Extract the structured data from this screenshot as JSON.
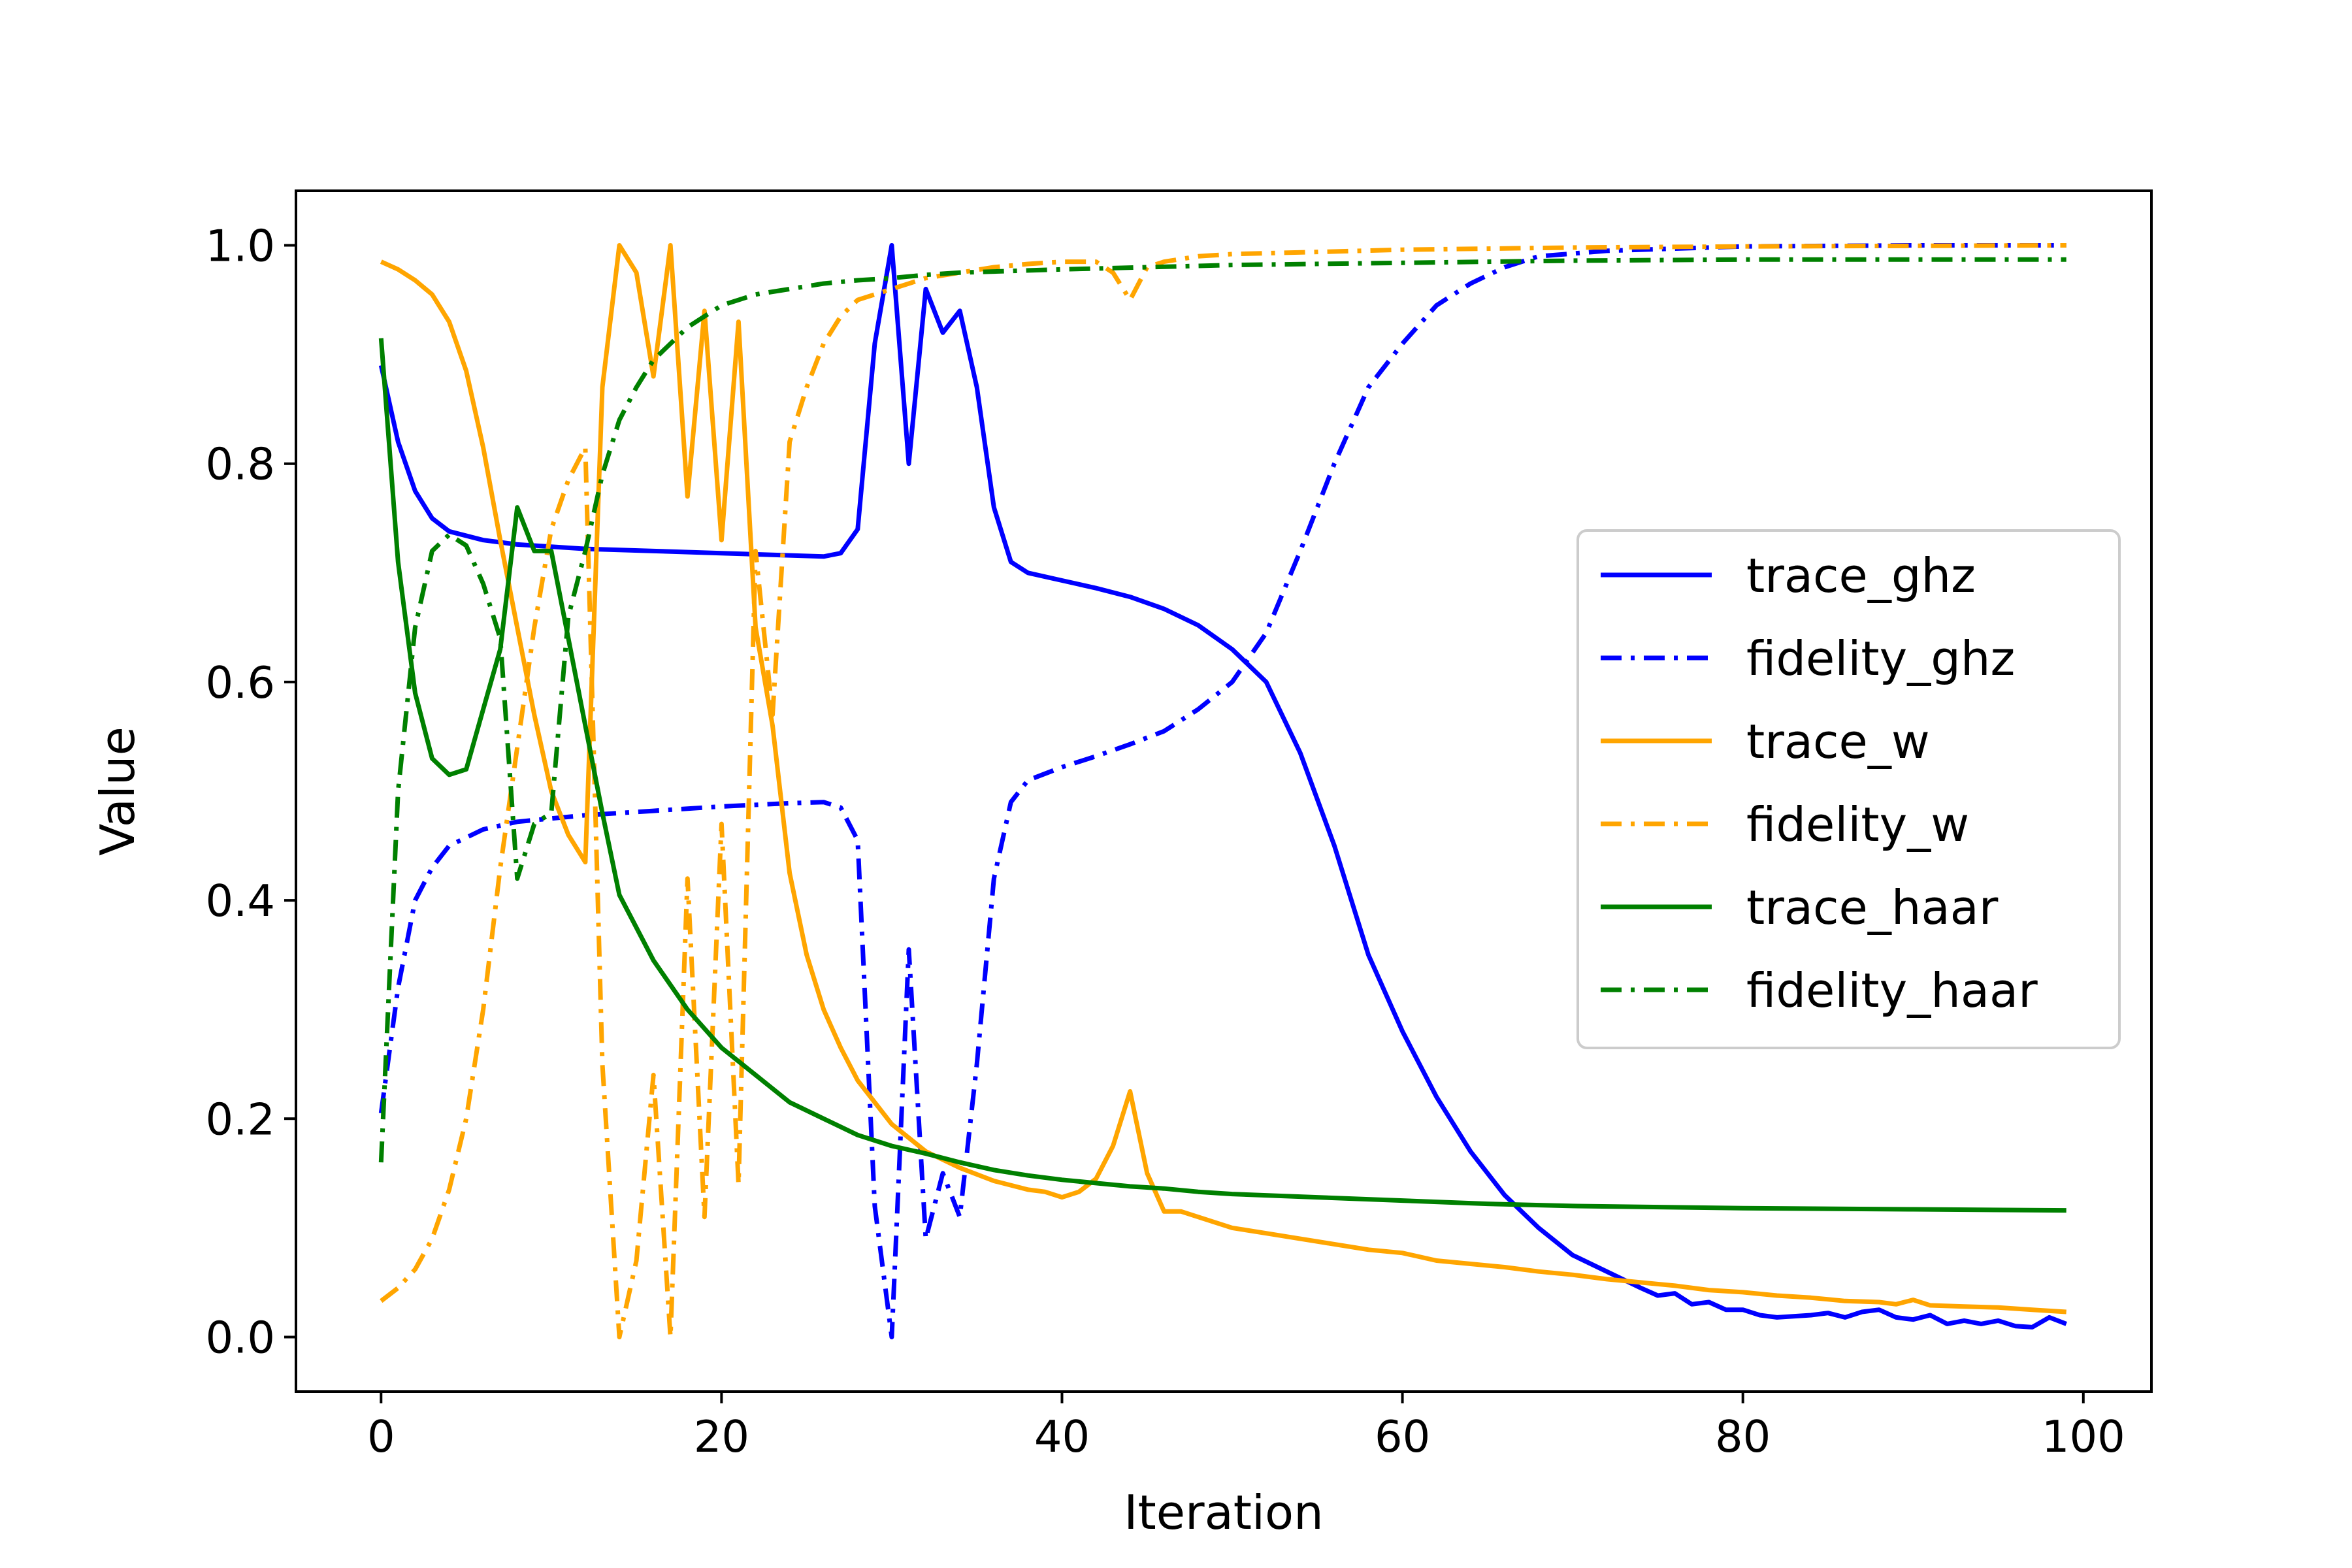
{
  "chart_data": {
    "type": "line",
    "title": "",
    "xlabel": "Iteration",
    "ylabel": "Value",
    "xlim": [
      -5,
      104
    ],
    "ylim": [
      -0.05,
      1.05
    ],
    "xticks": [
      0,
      20,
      40,
      60,
      80,
      100
    ],
    "yticks": [
      0.0,
      0.2,
      0.4,
      0.6,
      0.8,
      1.0
    ],
    "xtick_labels": [
      "0",
      "20",
      "40",
      "60",
      "80",
      "100"
    ],
    "ytick_labels": [
      "0.0",
      "0.2",
      "0.4",
      "0.6",
      "0.8",
      "1.0"
    ],
    "grid": false,
    "legend_position": "center-right",
    "series": [
      {
        "name": "trace_ghz",
        "color": "#0000ff",
        "style": "solid",
        "points": [
          [
            0,
            0.89
          ],
          [
            1,
            0.82
          ],
          [
            2,
            0.775
          ],
          [
            3,
            0.75
          ],
          [
            4,
            0.738
          ],
          [
            6,
            0.73
          ],
          [
            8,
            0.726
          ],
          [
            12,
            0.722
          ],
          [
            16,
            0.72
          ],
          [
            20,
            0.718
          ],
          [
            24,
            0.716
          ],
          [
            26,
            0.715
          ],
          [
            27,
            0.718
          ],
          [
            28,
            0.74
          ],
          [
            29,
            0.91
          ],
          [
            30,
            1.0
          ],
          [
            31,
            0.8
          ],
          [
            32,
            0.96
          ],
          [
            33,
            0.92
          ],
          [
            34,
            0.94
          ],
          [
            35,
            0.87
          ],
          [
            36,
            0.76
          ],
          [
            37,
            0.71
          ],
          [
            38,
            0.7
          ],
          [
            40,
            0.693
          ],
          [
            42,
            0.686
          ],
          [
            44,
            0.678
          ],
          [
            46,
            0.667
          ],
          [
            48,
            0.652
          ],
          [
            50,
            0.63
          ],
          [
            52,
            0.6
          ],
          [
            54,
            0.535
          ],
          [
            56,
            0.45
          ],
          [
            58,
            0.35
          ],
          [
            60,
            0.28
          ],
          [
            62,
            0.22
          ],
          [
            64,
            0.17
          ],
          [
            66,
            0.13
          ],
          [
            68,
            0.1
          ],
          [
            70,
            0.075
          ],
          [
            72,
            0.06
          ],
          [
            74,
            0.045
          ],
          [
            75,
            0.038
          ],
          [
            76,
            0.04
          ],
          [
            77,
            0.03
          ],
          [
            78,
            0.032
          ],
          [
            79,
            0.025
          ],
          [
            80,
            0.025
          ],
          [
            81,
            0.02
          ],
          [
            82,
            0.018
          ],
          [
            84,
            0.02
          ],
          [
            85,
            0.022
          ],
          [
            86,
            0.018
          ],
          [
            87,
            0.023
          ],
          [
            88,
            0.025
          ],
          [
            89,
            0.018
          ],
          [
            90,
            0.016
          ],
          [
            91,
            0.02
          ],
          [
            92,
            0.012
          ],
          [
            93,
            0.015
          ],
          [
            94,
            0.012
          ],
          [
            95,
            0.015
          ],
          [
            96,
            0.01
          ],
          [
            97,
            0.009
          ],
          [
            98,
            0.018
          ],
          [
            99,
            0.012
          ]
        ]
      },
      {
        "name": "fidelity_ghz",
        "color": "#0000ff",
        "style": "dashdot",
        "points": [
          [
            0,
            0.205
          ],
          [
            1,
            0.32
          ],
          [
            2,
            0.4
          ],
          [
            3,
            0.43
          ],
          [
            4,
            0.45
          ],
          [
            6,
            0.465
          ],
          [
            8,
            0.472
          ],
          [
            12,
            0.478
          ],
          [
            16,
            0.482
          ],
          [
            20,
            0.486
          ],
          [
            24,
            0.489
          ],
          [
            26,
            0.49
          ],
          [
            27,
            0.485
          ],
          [
            28,
            0.455
          ],
          [
            29,
            0.12
          ],
          [
            30,
            0.0
          ],
          [
            31,
            0.355
          ],
          [
            32,
            0.09
          ],
          [
            33,
            0.15
          ],
          [
            34,
            0.11
          ],
          [
            35,
            0.25
          ],
          [
            36,
            0.42
          ],
          [
            37,
            0.49
          ],
          [
            38,
            0.51
          ],
          [
            40,
            0.522
          ],
          [
            42,
            0.532
          ],
          [
            44,
            0.543
          ],
          [
            46,
            0.555
          ],
          [
            48,
            0.575
          ],
          [
            50,
            0.6
          ],
          [
            52,
            0.645
          ],
          [
            54,
            0.72
          ],
          [
            56,
            0.8
          ],
          [
            58,
            0.87
          ],
          [
            60,
            0.91
          ],
          [
            62,
            0.945
          ],
          [
            64,
            0.965
          ],
          [
            66,
            0.98
          ],
          [
            68,
            0.99
          ],
          [
            72,
            0.995
          ],
          [
            80,
            0.999
          ],
          [
            90,
            1.0
          ],
          [
            99,
            1.0
          ]
        ]
      },
      {
        "name": "trace_w",
        "color": "#ffa500",
        "style": "solid",
        "points": [
          [
            0,
            0.985
          ],
          [
            1,
            0.978
          ],
          [
            2,
            0.968
          ],
          [
            3,
            0.955
          ],
          [
            4,
            0.93
          ],
          [
            5,
            0.885
          ],
          [
            6,
            0.815
          ],
          [
            7,
            0.73
          ],
          [
            8,
            0.65
          ],
          [
            9,
            0.57
          ],
          [
            10,
            0.5
          ],
          [
            11,
            0.46
          ],
          [
            12,
            0.435
          ],
          [
            13,
            0.87
          ],
          [
            14,
            1.0
          ],
          [
            15,
            0.975
          ],
          [
            16,
            0.88
          ],
          [
            17,
            1.0
          ],
          [
            18,
            0.77
          ],
          [
            19,
            0.94
          ],
          [
            20,
            0.73
          ],
          [
            21,
            0.93
          ],
          [
            22,
            0.65
          ],
          [
            23,
            0.56
          ],
          [
            24,
            0.425
          ],
          [
            25,
            0.35
          ],
          [
            26,
            0.3
          ],
          [
            27,
            0.265
          ],
          [
            28,
            0.235
          ],
          [
            30,
            0.195
          ],
          [
            32,
            0.17
          ],
          [
            34,
            0.155
          ],
          [
            36,
            0.143
          ],
          [
            38,
            0.135
          ],
          [
            39,
            0.133
          ],
          [
            40,
            0.128
          ],
          [
            41,
            0.133
          ],
          [
            42,
            0.145
          ],
          [
            43,
            0.175
          ],
          [
            44,
            0.225
          ],
          [
            45,
            0.15
          ],
          [
            46,
            0.115
          ],
          [
            47,
            0.115
          ],
          [
            48,
            0.11
          ],
          [
            50,
            0.1
          ],
          [
            52,
            0.095
          ],
          [
            54,
            0.09
          ],
          [
            56,
            0.085
          ],
          [
            58,
            0.08
          ],
          [
            60,
            0.077
          ],
          [
            62,
            0.07
          ],
          [
            64,
            0.067
          ],
          [
            66,
            0.064
          ],
          [
            68,
            0.06
          ],
          [
            70,
            0.057
          ],
          [
            72,
            0.053
          ],
          [
            74,
            0.05
          ],
          [
            76,
            0.047
          ],
          [
            78,
            0.043
          ],
          [
            80,
            0.041
          ],
          [
            82,
            0.038
          ],
          [
            84,
            0.036
          ],
          [
            86,
            0.033
          ],
          [
            88,
            0.032
          ],
          [
            89,
            0.03
          ],
          [
            90,
            0.034
          ],
          [
            91,
            0.029
          ],
          [
            93,
            0.028
          ],
          [
            95,
            0.027
          ],
          [
            97,
            0.025
          ],
          [
            99,
            0.023
          ]
        ]
      },
      {
        "name": "fidelity_w",
        "color": "#ffa500",
        "style": "dashdot",
        "points": [
          [
            0,
            0.033
          ],
          [
            1,
            0.045
          ],
          [
            2,
            0.062
          ],
          [
            3,
            0.09
          ],
          [
            4,
            0.135
          ],
          [
            5,
            0.2
          ],
          [
            6,
            0.3
          ],
          [
            7,
            0.43
          ],
          [
            8,
            0.54
          ],
          [
            9,
            0.65
          ],
          [
            10,
            0.74
          ],
          [
            11,
            0.785
          ],
          [
            12,
            0.815
          ],
          [
            13,
            0.25
          ],
          [
            14,
            0.0
          ],
          [
            15,
            0.07
          ],
          [
            16,
            0.24
          ],
          [
            17,
            0.0
          ],
          [
            18,
            0.42
          ],
          [
            19,
            0.11
          ],
          [
            20,
            0.47
          ],
          [
            21,
            0.14
          ],
          [
            22,
            0.72
          ],
          [
            23,
            0.57
          ],
          [
            24,
            0.82
          ],
          [
            25,
            0.87
          ],
          [
            26,
            0.91
          ],
          [
            27,
            0.935
          ],
          [
            28,
            0.95
          ],
          [
            30,
            0.96
          ],
          [
            32,
            0.97
          ],
          [
            34,
            0.975
          ],
          [
            36,
            0.98
          ],
          [
            38,
            0.983
          ],
          [
            40,
            0.985
          ],
          [
            42,
            0.985
          ],
          [
            43,
            0.975
          ],
          [
            44,
            0.95
          ],
          [
            45,
            0.98
          ],
          [
            46,
            0.985
          ],
          [
            48,
            0.99
          ],
          [
            50,
            0.992
          ],
          [
            55,
            0.994
          ],
          [
            60,
            0.996
          ],
          [
            70,
            0.998
          ],
          [
            80,
            0.999
          ],
          [
            99,
            1.0
          ]
        ]
      },
      {
        "name": "trace_haar",
        "color": "#008000",
        "style": "solid",
        "points": [
          [
            0,
            0.915
          ],
          [
            1,
            0.71
          ],
          [
            2,
            0.59
          ],
          [
            3,
            0.53
          ],
          [
            4,
            0.515
          ],
          [
            5,
            0.52
          ],
          [
            6,
            0.575
          ],
          [
            7,
            0.63
          ],
          [
            8,
            0.76
          ],
          [
            9,
            0.72
          ],
          [
            10,
            0.72
          ],
          [
            11,
            0.64
          ],
          [
            12,
            0.56
          ],
          [
            13,
            0.48
          ],
          [
            14,
            0.405
          ],
          [
            16,
            0.345
          ],
          [
            18,
            0.3
          ],
          [
            20,
            0.265
          ],
          [
            22,
            0.24
          ],
          [
            24,
            0.215
          ],
          [
            26,
            0.2
          ],
          [
            28,
            0.185
          ],
          [
            30,
            0.175
          ],
          [
            32,
            0.168
          ],
          [
            34,
            0.16
          ],
          [
            36,
            0.153
          ],
          [
            38,
            0.148
          ],
          [
            40,
            0.144
          ],
          [
            42,
            0.141
          ],
          [
            44,
            0.138
          ],
          [
            46,
            0.136
          ],
          [
            48,
            0.133
          ],
          [
            50,
            0.131
          ],
          [
            55,
            0.128
          ],
          [
            60,
            0.125
          ],
          [
            65,
            0.122
          ],
          [
            70,
            0.12
          ],
          [
            80,
            0.118
          ],
          [
            90,
            0.117
          ],
          [
            99,
            0.116
          ]
        ]
      },
      {
        "name": "fidelity_haar",
        "color": "#008000",
        "style": "dashdot",
        "points": [
          [
            0,
            0.16
          ],
          [
            1,
            0.5
          ],
          [
            2,
            0.65
          ],
          [
            3,
            0.72
          ],
          [
            4,
            0.735
          ],
          [
            5,
            0.725
          ],
          [
            6,
            0.69
          ],
          [
            7,
            0.64
          ],
          [
            8,
            0.42
          ],
          [
            9,
            0.47
          ],
          [
            10,
            0.48
          ],
          [
            11,
            0.66
          ],
          [
            12,
            0.72
          ],
          [
            13,
            0.79
          ],
          [
            14,
            0.84
          ],
          [
            15,
            0.87
          ],
          [
            16,
            0.895
          ],
          [
            18,
            0.925
          ],
          [
            20,
            0.945
          ],
          [
            22,
            0.955
          ],
          [
            24,
            0.96
          ],
          [
            26,
            0.965
          ],
          [
            28,
            0.968
          ],
          [
            30,
            0.97
          ],
          [
            32,
            0.973
          ],
          [
            34,
            0.975
          ],
          [
            36,
            0.976
          ],
          [
            40,
            0.978
          ],
          [
            45,
            0.98
          ],
          [
            50,
            0.982
          ],
          [
            60,
            0.984
          ],
          [
            70,
            0.986
          ],
          [
            80,
            0.987
          ],
          [
            99,
            0.987
          ]
        ]
      }
    ]
  }
}
